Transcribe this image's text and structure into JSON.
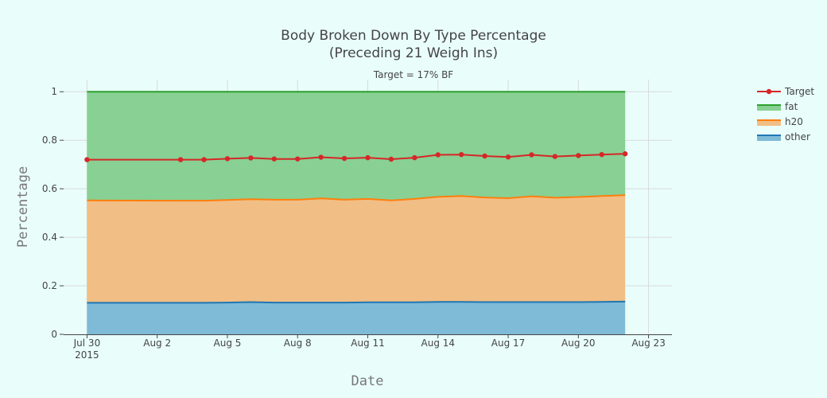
{
  "chart_data": {
    "type": "area",
    "title_line1": "Body Broken Down By Type Percentage",
    "title_line2": "(Preceding 21 Weigh Ins)",
    "subtitle": "Target = 17% BF",
    "xlabel": "Date",
    "ylabel": "Percentage",
    "x_tick_labels": [
      "Jul 30",
      "Aug 2",
      "Aug 5",
      "Aug 8",
      "Aug 11",
      "Aug 14",
      "Aug 17",
      "Aug 20",
      "Aug 23"
    ],
    "x_tick_year": "2015",
    "x_tick_days": [
      0,
      3,
      6,
      9,
      12,
      15,
      18,
      21,
      24
    ],
    "xlim": [
      "2015-07-29",
      "2015-08-23"
    ],
    "y_ticks": [
      0,
      0.2,
      0.4,
      0.6,
      0.8,
      1
    ],
    "y_tick_labels": [
      "0",
      "0.2",
      "0.4",
      "0.6",
      "0.8",
      "1"
    ],
    "ylim": [
      0,
      1.05
    ],
    "stack": true,
    "x": [
      "2015-07-30",
      "2015-08-03",
      "2015-08-04",
      "2015-08-05",
      "2015-08-06",
      "2015-08-07",
      "2015-08-08",
      "2015-08-09",
      "2015-08-10",
      "2015-08-11",
      "2015-08-12",
      "2015-08-13",
      "2015-08-14",
      "2015-08-15",
      "2015-08-16",
      "2015-08-17",
      "2015-08-18",
      "2015-08-19",
      "2015-08-20",
      "2015-08-21",
      "2015-08-22"
    ],
    "x_days": [
      0,
      4,
      5,
      6,
      7,
      8,
      9,
      10,
      11,
      12,
      13,
      14,
      15,
      16,
      17,
      18,
      19,
      20,
      21,
      22,
      23
    ],
    "series": [
      {
        "name": "other",
        "color": "#1f77b4",
        "fill": "#7fbad7",
        "values": [
          0.13,
          0.13,
          0.13,
          0.131,
          0.133,
          0.131,
          0.131,
          0.131,
          0.131,
          0.132,
          0.132,
          0.132,
          0.134,
          0.134,
          0.133,
          0.133,
          0.133,
          0.133,
          0.133,
          0.134,
          0.135
        ]
      },
      {
        "name": "h20",
        "color": "#ff7f0e",
        "fill": "#f1be85",
        "values": [
          0.552,
          0.551,
          0.551,
          0.554,
          0.557,
          0.555,
          0.555,
          0.56,
          0.555,
          0.558,
          0.552,
          0.558,
          0.567,
          0.57,
          0.564,
          0.561,
          0.569,
          0.563,
          0.566,
          0.57,
          0.574
        ]
      },
      {
        "name": "fat",
        "color": "#2ca02c",
        "fill": "#88d093",
        "values": [
          1,
          1,
          1,
          1,
          1,
          1,
          1,
          1,
          1,
          1,
          1,
          1,
          1,
          1,
          1,
          1,
          1,
          1,
          1,
          1,
          1
        ]
      }
    ],
    "target": {
      "name": "Target",
      "color": "#d62728",
      "values": [
        0.72,
        0.72,
        0.72,
        0.724,
        0.727,
        0.723,
        0.723,
        0.73,
        0.725,
        0.728,
        0.722,
        0.728,
        0.74,
        0.741,
        0.735,
        0.731,
        0.74,
        0.733,
        0.737,
        0.741,
        0.744
      ]
    },
    "legend": [
      {
        "name": "Target",
        "color": "#d62728",
        "kind": "line-marker"
      },
      {
        "name": "fat",
        "color": "#2ca02c",
        "fill": "#88d093",
        "kind": "area"
      },
      {
        "name": "h20",
        "color": "#ff7f0e",
        "fill": "#f1be85",
        "kind": "area"
      },
      {
        "name": "other",
        "color": "#1f77b4",
        "fill": "#7fbad7",
        "kind": "area"
      }
    ],
    "legend_position": "top-right",
    "grid": true
  }
}
